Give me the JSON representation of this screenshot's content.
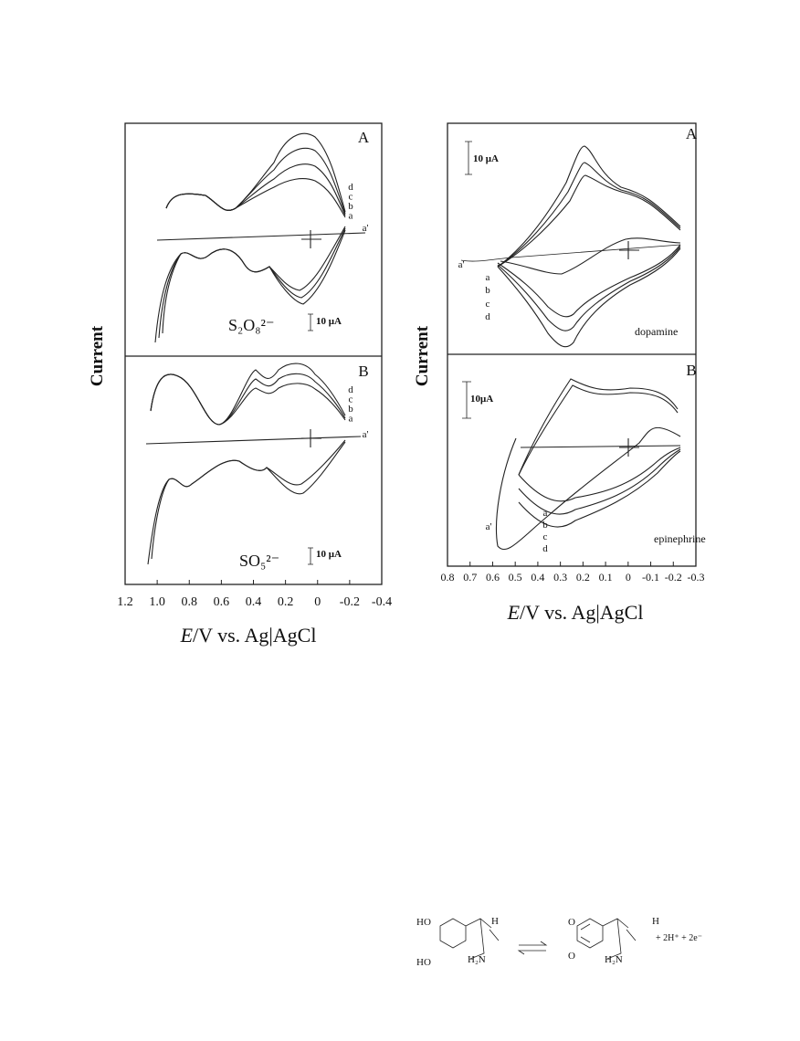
{
  "figure": {
    "left": {
      "y_axis_label": "Current",
      "x_axis_label": {
        "symbol": "E",
        "rest": "/V vs. Ag|AgCl"
      },
      "xlim": [
        1.2,
        -0.4
      ],
      "xticks": [
        1.2,
        {
          "value": 1,
          "label": "1.0"
        },
        0.8,
        0.6,
        0.4,
        0.2,
        0,
        -0.2,
        -0.4
      ],
      "panels": [
        {
          "label": "A",
          "curve_labels": [
            "d",
            "c",
            "b",
            "a",
            "a'"
          ],
          "species": "S₂O₈²⁻",
          "scale_bar": "10 μA"
        },
        {
          "label": "B",
          "curve_labels": [
            "d",
            "c",
            "b",
            "a",
            "a'"
          ],
          "species": "SO₅²⁻",
          "scale_bar": "10 μA"
        }
      ]
    },
    "right": {
      "y_axis_label": "Current",
      "x_axis_label": {
        "symbol": "E",
        "rest": "/V vs. Ag|AgCl"
      },
      "xlim": [
        0.8,
        -0.3
      ],
      "xticks": [
        0.8,
        0.7,
        0.6,
        0.5,
        0.4,
        0.3,
        0.2,
        0.1,
        0,
        -0.1,
        -0.2,
        -0.3
      ],
      "panels": [
        {
          "label": "A",
          "curve_labels": [
            "a'",
            "a",
            "b",
            "c",
            "d"
          ],
          "species": "dopamine",
          "scale_bar": "10 μA"
        },
        {
          "label": "B",
          "curve_labels": [
            "a'",
            "a",
            "b",
            "c",
            "d"
          ],
          "species": "epinephrine",
          "scale_bar": "10μA"
        }
      ]
    },
    "scheme": {
      "reactant": [
        "HO",
        "HO",
        "H",
        "H₂N"
      ],
      "product": [
        "O",
        "O",
        "H",
        "H₂N"
      ],
      "byproducts": "+ 2H⁺ + 2e⁻"
    }
  }
}
